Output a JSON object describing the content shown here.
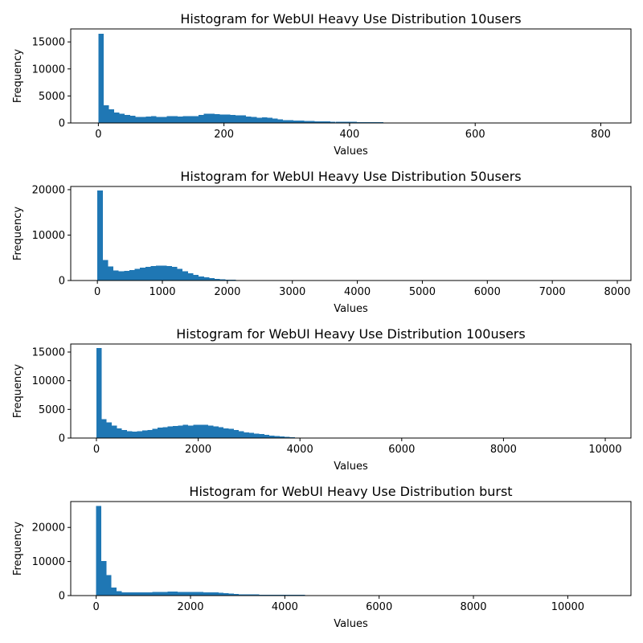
{
  "colors": {
    "bar": "#1f77b4"
  },
  "chart_data": [
    {
      "type": "bar",
      "title": "Histogram for WebUI Heavy Use Distribution 10users",
      "xlabel": "Values",
      "ylabel": "Frequency",
      "xlim": [
        -44,
        848
      ],
      "ylim": [
        0,
        17400
      ],
      "xticks": [
        0,
        200,
        400,
        600,
        800
      ],
      "yticks": [
        0,
        5000,
        10000,
        15000
      ],
      "bin_start": 0,
      "bin_width": 8.4,
      "values": [
        16500,
        3300,
        2500,
        1900,
        1700,
        1500,
        1350,
        1100,
        1150,
        1200,
        1250,
        1150,
        1150,
        1250,
        1250,
        1200,
        1300,
        1300,
        1300,
        1500,
        1700,
        1700,
        1600,
        1550,
        1550,
        1500,
        1400,
        1400,
        1200,
        1100,
        1000,
        1050,
        1000,
        800,
        650,
        550,
        500,
        450,
        420,
        380,
        350,
        320,
        300,
        280,
        250,
        230,
        210,
        200,
        190,
        170,
        150,
        140,
        130,
        120,
        100,
        90,
        80,
        60,
        50,
        40,
        30,
        20,
        15,
        12,
        10,
        8,
        6,
        5,
        4,
        3,
        2,
        2,
        1,
        1,
        1,
        1,
        1,
        1,
        1,
        1,
        1,
        1,
        1,
        1,
        1,
        1,
        1,
        1,
        1,
        1,
        1,
        1,
        1,
        1,
        1,
        1,
        1,
        1,
        1,
        1
      ]
    },
    {
      "type": "bar",
      "title": "Histogram for WebUI Heavy Use Distribution 50users",
      "xlabel": "Values",
      "ylabel": "Frequency",
      "xlim": [
        -410,
        8210
      ],
      "ylim": [
        0,
        20700
      ],
      "xticks": [
        0,
        1000,
        2000,
        3000,
        4000,
        5000,
        6000,
        7000,
        8000
      ],
      "yticks": [
        0,
        10000,
        20000
      ],
      "bin_start": 0,
      "bin_width": 82,
      "values": [
        19800,
        4500,
        3100,
        2200,
        2000,
        2100,
        2300,
        2600,
        2800,
        3000,
        3200,
        3300,
        3300,
        3200,
        3000,
        2600,
        2000,
        1600,
        1200,
        900,
        700,
        500,
        350,
        250,
        200,
        150,
        100,
        80,
        60,
        40,
        30,
        20,
        15,
        10,
        8,
        6,
        5,
        4,
        3,
        2,
        2,
        1,
        1,
        1,
        1,
        1,
        1,
        1,
        1,
        1,
        1,
        1,
        1,
        1,
        1,
        1,
        1,
        1,
        1,
        1,
        1,
        1,
        1,
        1,
        1,
        1,
        1,
        1,
        1,
        1,
        1,
        1,
        1,
        1,
        1,
        1,
        1,
        1,
        1,
        1,
        1,
        1,
        1,
        1,
        1,
        1,
        1,
        1,
        1,
        1,
        1,
        1,
        1,
        1,
        1,
        1,
        1,
        1,
        1,
        1
      ]
    },
    {
      "type": "bar",
      "title": "Histogram for WebUI Heavy Use Distribution 100users",
      "xlabel": "Values",
      "ylabel": "Frequency",
      "xlim": [
        -505,
        10505
      ],
      "ylim": [
        0,
        16400
      ],
      "xticks": [
        0,
        2000,
        4000,
        6000,
        8000,
        10000
      ],
      "yticks": [
        0,
        5000,
        10000,
        15000
      ],
      "bin_start": 0,
      "bin_width": 100,
      "values": [
        15700,
        3300,
        2700,
        2200,
        1700,
        1400,
        1200,
        1100,
        1200,
        1300,
        1400,
        1600,
        1800,
        1900,
        2000,
        2100,
        2200,
        2300,
        2200,
        2300,
        2300,
        2300,
        2200,
        2000,
        1900,
        1700,
        1600,
        1400,
        1200,
        1000,
        900,
        800,
        700,
        550,
        450,
        350,
        250,
        200,
        150,
        100,
        60,
        40,
        30,
        20,
        15,
        10,
        8,
        6,
        5,
        4,
        3,
        2,
        2,
        1,
        1,
        1,
        1,
        1,
        1,
        1,
        1,
        1,
        1,
        1,
        1,
        1,
        1,
        1,
        1,
        1,
        1,
        1,
        1,
        1,
        1,
        1,
        1,
        1,
        1,
        1,
        1,
        1,
        1,
        1,
        1,
        1,
        1,
        1,
        1,
        1,
        1,
        1,
        1,
        1,
        1,
        1,
        1,
        1,
        1,
        1
      ]
    },
    {
      "type": "bar",
      "title": "Histogram for WebUI Heavy Use Distribution burst",
      "xlabel": "Values",
      "ylabel": "Frequency",
      "xlim": [
        -540,
        11340
      ],
      "ylim": [
        0,
        27600
      ],
      "xticks": [
        0,
        2000,
        4000,
        6000,
        8000,
        10000
      ],
      "yticks": [
        0,
        10000,
        20000
      ],
      "bin_start": 0,
      "bin_width": 108,
      "values": [
        26300,
        10200,
        6000,
        2400,
        1300,
        1000,
        1000,
        1000,
        1000,
        1000,
        1000,
        1100,
        1100,
        1100,
        1200,
        1200,
        1100,
        1100,
        1100,
        1100,
        1100,
        1000,
        900,
        900,
        800,
        700,
        600,
        500,
        400,
        300,
        300,
        300,
        250,
        250,
        250,
        250,
        200,
        200,
        200,
        200,
        180,
        150,
        120,
        100,
        80,
        60,
        40,
        30,
        20,
        15,
        10,
        8,
        6,
        5,
        4,
        3,
        2,
        2,
        1,
        1,
        1,
        1,
        1,
        1,
        1,
        1,
        1,
        1,
        1,
        1,
        1,
        1,
        1,
        1,
        1,
        1,
        1,
        1,
        1,
        1,
        1,
        1,
        1,
        1,
        1,
        1,
        1,
        1,
        1,
        1,
        1,
        1,
        1,
        1,
        1,
        1,
        1,
        1,
        1,
        1
      ]
    }
  ]
}
